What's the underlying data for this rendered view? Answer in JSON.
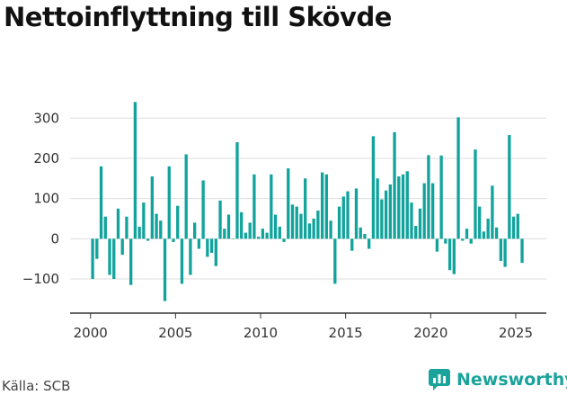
{
  "title": "Nettoinflyttning till Skövde",
  "source": "Källa: SCB",
  "brand": {
    "name": "Newsworthy",
    "icon": "newsworthy-logo-icon",
    "color": "#1aa39a"
  },
  "colors": {
    "bar": "#11a39c",
    "grid": "#dddddd",
    "axis": "#333333"
  },
  "chart_data": {
    "type": "bar",
    "title": "Nettoinflyttning till Skövde",
    "xlabel": "",
    "ylabel": "",
    "frequency": "quarterly",
    "start": "2000 Q1",
    "end": "2025 Q2",
    "xlim": [
      1998.8,
      2026.8
    ],
    "ylim": [
      -185,
      370
    ],
    "grid": true,
    "x_ticks": [
      2000,
      2005,
      2010,
      2015,
      2020,
      2025
    ],
    "x_tick_labels": [
      "2000",
      "2005",
      "2010",
      "2015",
      "2020",
      "2025"
    ],
    "y_ticks": [
      -100,
      0,
      100,
      200,
      300
    ],
    "y_tick_labels": [
      "−100",
      "0",
      "100",
      "200",
      "300"
    ],
    "series": [
      {
        "values": [
          -100,
          -50,
          180,
          55,
          -90,
          -100,
          75,
          -40,
          55,
          -115,
          340,
          30,
          90,
          -5,
          155,
          62,
          45,
          -155,
          180,
          -8,
          82,
          -112,
          210,
          -90,
          40,
          -25,
          145,
          -45,
          -35,
          -68,
          95,
          25,
          60,
          0,
          240,
          66,
          15,
          40,
          160,
          5,
          25,
          15,
          160,
          60,
          30,
          -8,
          175,
          85,
          80,
          62,
          150,
          38,
          50,
          70,
          165,
          160,
          45,
          -112,
          80,
          105,
          118,
          -30,
          125,
          28,
          12,
          -25,
          255,
          150,
          98,
          120,
          135,
          265,
          155,
          160,
          168,
          90,
          32,
          75,
          138,
          208,
          138,
          -32,
          207,
          -12,
          -78,
          -88,
          302,
          -5,
          25,
          -12,
          222,
          80,
          18,
          50,
          132,
          28,
          -55,
          -70,
          258,
          55,
          62,
          -60
        ]
      }
    ]
  }
}
